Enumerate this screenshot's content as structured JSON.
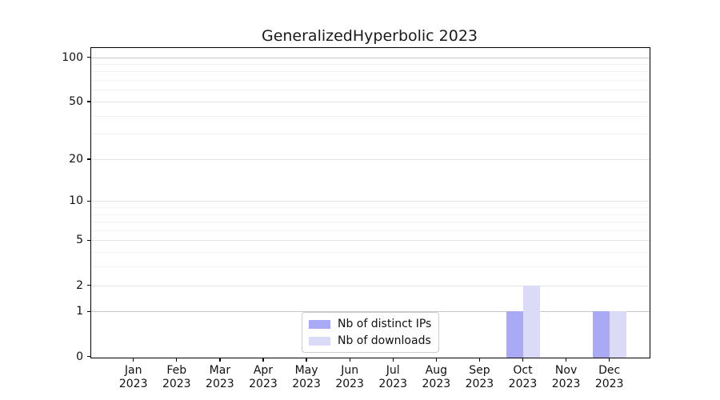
{
  "chart_data": {
    "type": "bar",
    "title": "GeneralizedHyperbolic 2023",
    "x_axis": {
      "categories": [
        "Jan",
        "Feb",
        "Mar",
        "Apr",
        "May",
        "Jun",
        "Jul",
        "Aug",
        "Sep",
        "Oct",
        "Nov",
        "Dec"
      ],
      "year_label": "2023"
    },
    "y_axis": {
      "scale": "log1p",
      "tick_values": [
        0,
        1,
        2,
        5,
        10,
        20,
        50,
        100
      ],
      "minor_gridline_values": [
        3,
        4,
        6,
        7,
        8,
        9,
        30,
        40,
        60,
        70,
        80,
        90
      ],
      "ylim": [
        0,
        115
      ]
    },
    "series": [
      {
        "name": "Nb of distinct IPs",
        "color": "#a9a9f5",
        "values": [
          0,
          0,
          0,
          0,
          0,
          0,
          0,
          0,
          0,
          1,
          0,
          1
        ]
      },
      {
        "name": "Nb of downloads",
        "color": "#dbdbf8",
        "values": [
          0,
          0,
          0,
          0,
          0,
          0,
          0,
          0,
          0,
          2,
          0,
          1
        ]
      }
    ],
    "legend": {
      "position": "lower center",
      "items": [
        "Nb of distinct IPs",
        "Nb of downloads"
      ]
    },
    "grid": true
  },
  "colors": {
    "background": "#ffffff",
    "axis": "#000000",
    "grid_major": "#c6c6c6",
    "grid_labeled": "#e4e4e4",
    "grid_minor": "#f2f2f2",
    "text": "#111111",
    "legend_border": "#cccccc"
  }
}
